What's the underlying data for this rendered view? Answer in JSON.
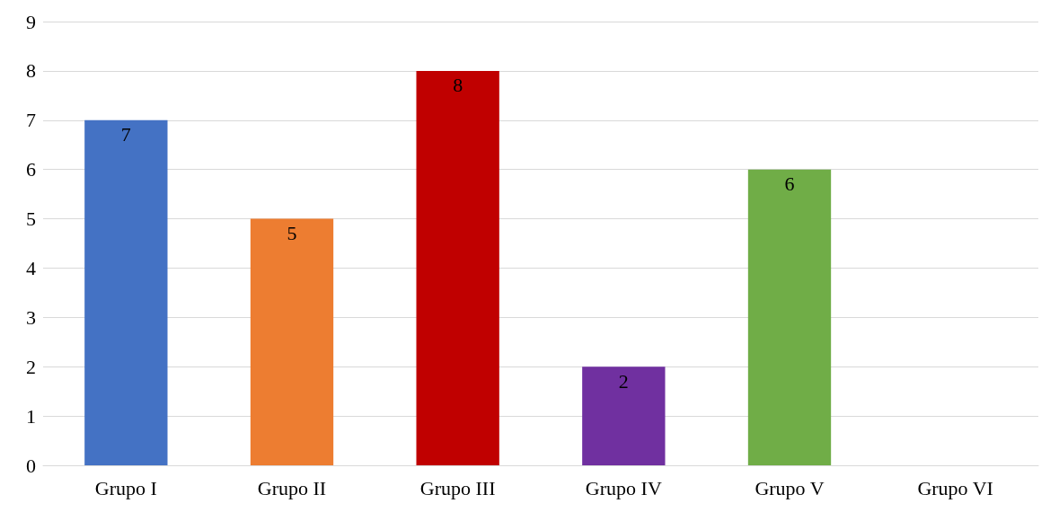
{
  "chart_data": {
    "type": "bar",
    "categories": [
      "Grupo I",
      "Grupo II",
      "Grupo III",
      "Grupo IV",
      "Grupo V",
      "Grupo VI"
    ],
    "values": [
      7,
      5,
      8,
      2,
      6,
      0
    ],
    "colors": [
      "#4472c4",
      "#ed7d31",
      "#c00000",
      "#7030a0",
      "#70ad47",
      "#a5a5a5"
    ],
    "value_labels": [
      "7",
      "5",
      "8",
      "2",
      "6",
      null
    ],
    "ylim": [
      0,
      9
    ],
    "yticks": [
      0,
      1,
      2,
      3,
      4,
      5,
      6,
      7,
      8,
      9
    ],
    "grid": "y"
  }
}
